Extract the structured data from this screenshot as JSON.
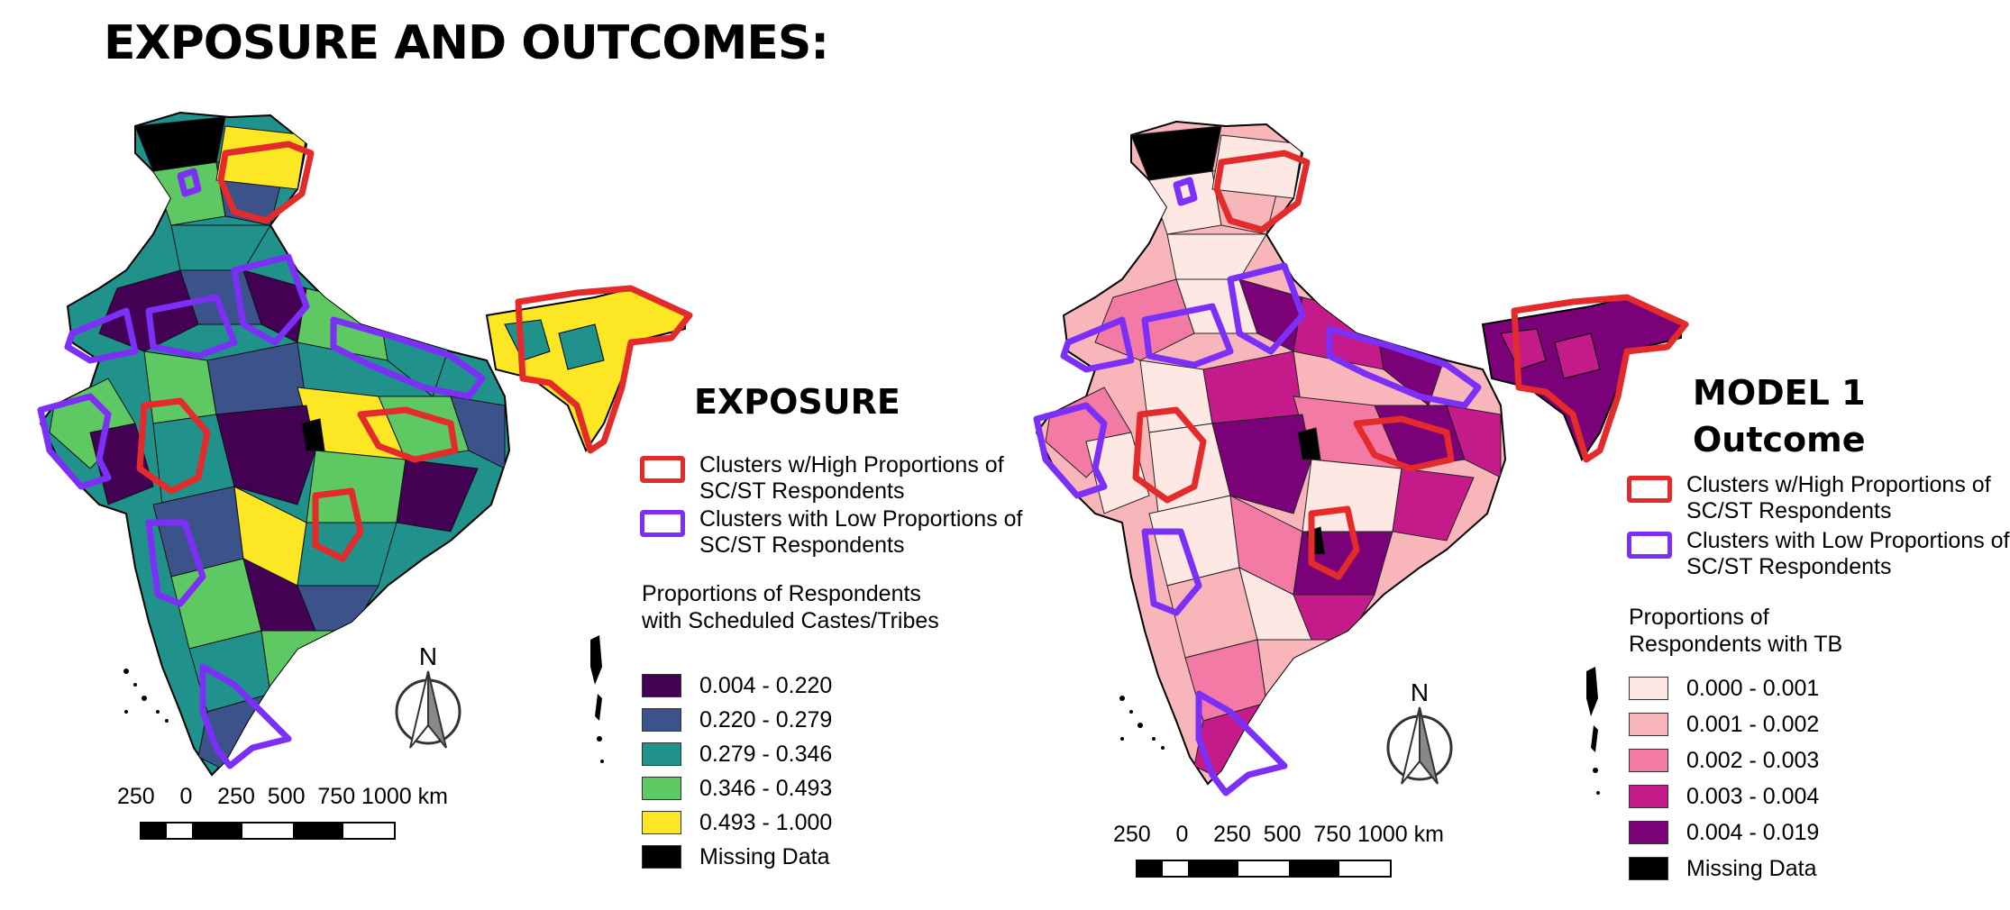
{
  "title": "EXPOSURE AND OUTCOMES:",
  "north_label": "N",
  "scale_text": "250    0    250  500  750 1000 km",
  "cluster_colors": {
    "high": "#e32b2b",
    "low": "#7b2ff7"
  },
  "panels": [
    {
      "id": "exposure",
      "heading": "EXPOSURE",
      "clusters": [
        {
          "label": "Clusters w/High Proportions of SC/ST Respondents",
          "color": "#e32b2b"
        },
        {
          "label": "Clusters with Low Proportions of SC/ST Respondents",
          "color": "#7b2ff7"
        }
      ],
      "legend_title": "Proportions of Respondents with Scheduled Castes/Tribes",
      "classes": [
        {
          "range": "0.004 - 0.220",
          "color": "#440154"
        },
        {
          "range": "0.220 - 0.279",
          "color": "#3b528b"
        },
        {
          "range": "0.279 - 0.346",
          "color": "#21918c"
        },
        {
          "range": "0.346 - 0.493",
          "color": "#5ec962"
        },
        {
          "range": "0.493 - 1.000",
          "color": "#fde725"
        },
        {
          "range": "Missing Data",
          "color": "#000000"
        }
      ]
    },
    {
      "id": "outcome",
      "heading": "MODEL 1 Outcome",
      "clusters": [
        {
          "label": "Clusters w/High Proportions of SC/ST Respondents",
          "color": "#e32b2b"
        },
        {
          "label": "Clusters with Low Proportions of SC/ST Respondents",
          "color": "#7b2ff7"
        }
      ],
      "legend_title": "Proportions of Respondents with TB",
      "classes": [
        {
          "range": "0.000 - 0.001",
          "color": "#fde8e3"
        },
        {
          "range": "0.001 - 0.002",
          "color": "#f8b6bb"
        },
        {
          "range": "0.002 - 0.003",
          "color": "#f27aa4"
        },
        {
          "range": "0.003 - 0.004",
          "color": "#c51b8a"
        },
        {
          "range": "0.004 - 0.019",
          "color": "#7a0177"
        },
        {
          "range": "Missing Data",
          "color": "#000000"
        }
      ]
    }
  ]
}
